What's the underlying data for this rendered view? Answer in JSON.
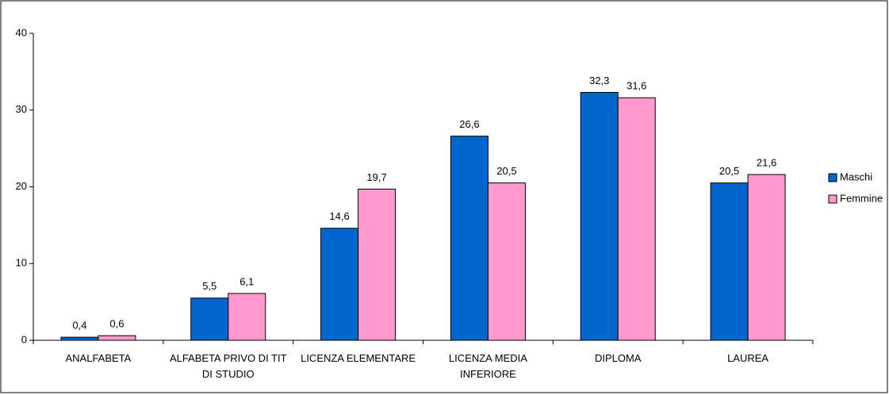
{
  "chart_data": {
    "type": "bar",
    "categories": [
      "ANALFABETA",
      "ALFABETA PRIVO DI TIT DI STUDIO",
      "LICENZA ELEMENTARE",
      "LICENZA MEDIA INFERIORE",
      "DIPLOMA",
      "LAUREA"
    ],
    "series": [
      {
        "name": "Maschi",
        "color": "#0066cc",
        "values": [
          0.4,
          5.5,
          14.6,
          26.6,
          32.3,
          20.5
        ],
        "value_labels": [
          "0,4",
          "5,5",
          "14,6",
          "26,6",
          "32,3",
          "20,5"
        ]
      },
      {
        "name": "Femmine",
        "color": "#ff99cc",
        "values": [
          0.6,
          6.1,
          19.7,
          20.5,
          31.6,
          21.6
        ],
        "value_labels": [
          "0,6",
          "6,1",
          "19,7",
          "20,5",
          "31,6",
          "21,6"
        ]
      }
    ],
    "ylim": [
      0,
      40
    ],
    "yticks": [
      0,
      10,
      20,
      30,
      40
    ],
    "grid": false,
    "legend": "right"
  }
}
